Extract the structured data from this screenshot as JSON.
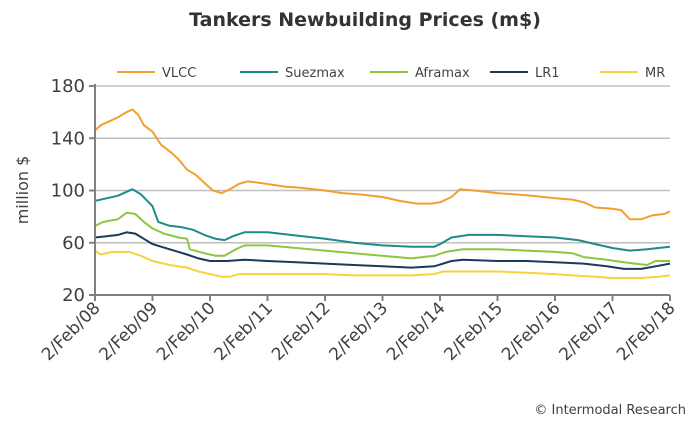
{
  "chart_data": {
    "type": "line",
    "title": "Tankers Newbuilding Prices (m$)",
    "xlabel": "",
    "ylabel": "million $",
    "ylim": [
      20,
      180
    ],
    "yticks": [
      20,
      60,
      100,
      140,
      180
    ],
    "ytick_labels": [
      "20",
      "60",
      "100",
      "140",
      "180"
    ],
    "xlim": [
      2008.0,
      2018.0
    ],
    "xticks": [
      2008,
      2009,
      2010,
      2011,
      2012,
      2013,
      2014,
      2015,
      2016,
      2017,
      2018
    ],
    "xtick_labels": [
      "2/Feb/08",
      "2/Feb/09",
      "2/Feb/10",
      "2/Feb/11",
      "2/Feb/12",
      "2/Feb/13",
      "2/Feb/14",
      "2/Feb/15",
      "2/Feb/16",
      "2/Feb/17",
      "2/Feb/18"
    ],
    "grid": "horizontal",
    "legend_position": "top",
    "credit": "© Intermodal Research",
    "series": [
      {
        "name": "VLCC",
        "color": "#f0a030",
        "x": [
          2008.0,
          2008.1,
          2008.25,
          2008.4,
          2008.55,
          2008.65,
          2008.75,
          2008.85,
          2009.0,
          2009.15,
          2009.3,
          2009.45,
          2009.6,
          2009.75,
          2009.9,
          2010.05,
          2010.2,
          2010.35,
          2010.5,
          2010.65,
          2010.85,
          2011.0,
          2011.3,
          2011.6,
          2012.0,
          2012.3,
          2012.6,
          2013.0,
          2013.3,
          2013.6,
          2013.85,
          2014.0,
          2014.2,
          2014.35,
          2014.6,
          2015.0,
          2015.3,
          2015.6,
          2016.0,
          2016.3,
          2016.5,
          2016.7,
          2017.0,
          2017.15,
          2017.3,
          2017.5,
          2017.7,
          2017.9,
          2018.0
        ],
        "values": [
          146,
          150,
          153,
          156,
          160,
          162,
          158,
          150,
          145,
          135,
          130,
          124,
          116,
          112,
          106,
          100,
          98,
          101,
          105,
          107,
          106,
          105,
          103,
          102,
          100,
          98,
          97,
          95,
          92,
          90,
          90,
          91,
          95,
          101,
          100,
          98,
          97,
          96,
          94,
          93,
          91,
          87,
          86,
          85,
          78,
          78,
          81,
          82,
          84
        ]
      },
      {
        "name": "Suezmax",
        "color": "#1f8a8a",
        "x": [
          2008.0,
          2008.2,
          2008.4,
          2008.55,
          2008.65,
          2008.8,
          2009.0,
          2009.1,
          2009.3,
          2009.5,
          2009.7,
          2009.9,
          2010.1,
          2010.25,
          2010.4,
          2010.6,
          2011.0,
          2011.4,
          2012.0,
          2012.5,
          2013.0,
          2013.5,
          2013.9,
          2014.0,
          2014.2,
          2014.5,
          2015.0,
          2015.5,
          2016.0,
          2016.4,
          2016.7,
          2017.0,
          2017.3,
          2017.6,
          2018.0
        ],
        "values": [
          92,
          94,
          96,
          99,
          101,
          97,
          88,
          76,
          73,
          72,
          70,
          66,
          63,
          62,
          65,
          68,
          68,
          66,
          63,
          60,
          58,
          57,
          57,
          59,
          64,
          66,
          66,
          65,
          64,
          62,
          59,
          56,
          54,
          55,
          57
        ]
      },
      {
        "name": "Aframax",
        "color": "#8dc63f",
        "x": [
          2008.0,
          2008.15,
          2008.4,
          2008.55,
          2008.7,
          2008.85,
          2009.0,
          2009.2,
          2009.45,
          2009.6,
          2009.65,
          2009.9,
          2010.1,
          2010.25,
          2010.45,
          2010.6,
          2011.0,
          2011.5,
          2012.0,
          2012.5,
          2013.0,
          2013.5,
          2013.9,
          2014.1,
          2014.4,
          2015.0,
          2015.5,
          2016.0,
          2016.3,
          2016.5,
          2016.9,
          2017.2,
          2017.6,
          2017.75,
          2018.0
        ],
        "values": [
          73,
          76,
          78,
          83,
          82,
          76,
          71,
          67,
          64,
          63,
          55,
          52,
          50,
          50,
          55,
          58,
          58,
          56,
          54,
          52,
          50,
          48,
          50,
          53,
          55,
          55,
          54,
          53,
          52,
          49,
          47,
          45,
          43,
          46,
          46
        ]
      },
      {
        "name": "LR1",
        "color": "#1a3a5c",
        "x": [
          2008.0,
          2008.2,
          2008.4,
          2008.55,
          2008.7,
          2008.85,
          2009.0,
          2009.3,
          2009.6,
          2009.8,
          2010.0,
          2010.3,
          2010.6,
          2011.0,
          2011.5,
          2012.0,
          2012.5,
          2013.0,
          2013.5,
          2013.9,
          2014.2,
          2014.4,
          2015.0,
          2015.5,
          2016.0,
          2016.5,
          2016.9,
          2017.2,
          2017.5,
          2017.75,
          2018.0
        ],
        "values": [
          64,
          65,
          66,
          68,
          67,
          63,
          59,
          55,
          51,
          48,
          46,
          46,
          47,
          46,
          45,
          44,
          43,
          42,
          41,
          42,
          46,
          47,
          46,
          46,
          45,
          44,
          42,
          40,
          40,
          42,
          44
        ]
      },
      {
        "name": "MR",
        "color": "#f5d33a",
        "x": [
          2008.0,
          2008.1,
          2008.3,
          2008.6,
          2008.8,
          2009.0,
          2009.3,
          2009.6,
          2009.8,
          2010.0,
          2010.2,
          2010.35,
          2010.5,
          2011.0,
          2011.5,
          2012.0,
          2012.5,
          2013.0,
          2013.5,
          2013.9,
          2014.05,
          2014.3,
          2015.0,
          2015.5,
          2016.0,
          2016.3,
          2016.7,
          2017.0,
          2017.5,
          2017.8,
          2018.0
        ],
        "values": [
          54,
          51,
          53,
          53,
          50,
          46,
          43,
          41,
          38,
          36,
          34,
          34,
          36,
          36,
          36,
          36,
          35,
          35,
          35,
          36,
          38,
          38,
          38,
          37,
          36,
          35,
          34,
          33,
          33,
          34,
          35
        ]
      }
    ]
  }
}
